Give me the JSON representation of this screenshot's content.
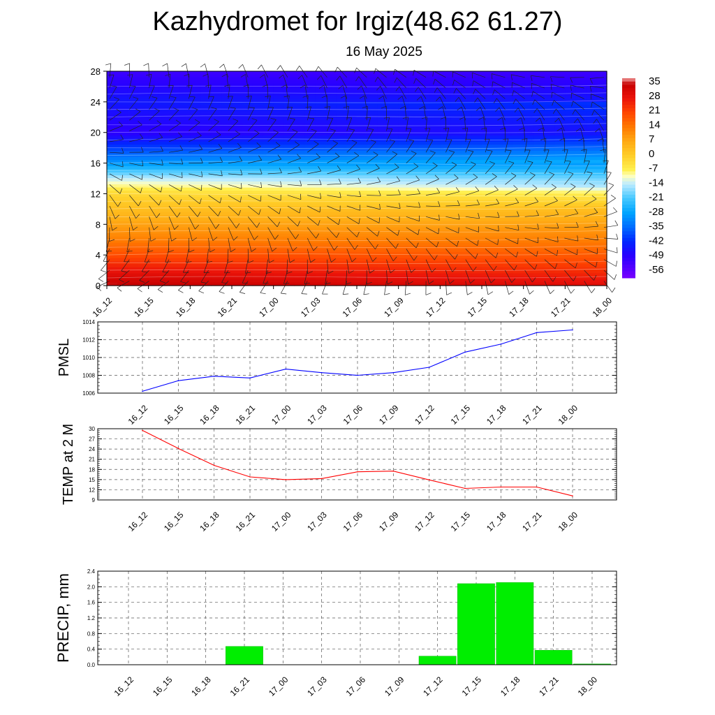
{
  "title": "Kazhydromet for Irgiz(48.62 61.27)",
  "subtitle": "16 May 2025",
  "time_labels": [
    "16_12",
    "16_15",
    "16_18",
    "16_21",
    "17_00",
    "17_03",
    "17_06",
    "17_09",
    "17_12",
    "17_15",
    "17_18",
    "17_21",
    "18_00"
  ],
  "colors": {
    "pmsl_line": "#0000ff",
    "temp_line": "#ff0000",
    "precip_bar": "#00ee00",
    "grid": "#555555"
  },
  "chart_data": [
    {
      "type": "heatmap",
      "description_of_field": "temperature cross-section with wind barbs",
      "y_ticks": [
        0,
        4,
        8,
        12,
        16,
        20,
        24,
        28
      ],
      "ylim": [
        0,
        28
      ],
      "x_ticks": [
        "16_12",
        "16_15",
        "16_18",
        "16_21",
        "17_00",
        "17_03",
        "17_06",
        "17_09",
        "17_12",
        "17_15",
        "17_18",
        "17_21",
        "18_00"
      ],
      "colorbar_labels": [
        "35",
        "28",
        "21",
        "14",
        "7",
        "0",
        "-7",
        "-14",
        "-21",
        "-28",
        "-35",
        "-42",
        "-49",
        "-56"
      ],
      "colorbar_range": [
        -60,
        38
      ],
      "level_temps_at_heights": {
        "heights": [
          0,
          4,
          8,
          12,
          14,
          16,
          20,
          24,
          28
        ],
        "temps": [
          30,
          18,
          8,
          -2,
          -14,
          -30,
          -50,
          -45,
          -52
        ]
      }
    },
    {
      "type": "line",
      "ylabel": "PMSL",
      "categories": [
        "16_12",
        "16_15",
        "16_18",
        "16_21",
        "17_00",
        "17_03",
        "17_06",
        "17_09",
        "17_12",
        "17_15",
        "17_18",
        "17_21",
        "18_00"
      ],
      "values": [
        1006.2,
        1007.4,
        1007.9,
        1007.7,
        1008.7,
        1008.3,
        1008.0,
        1008.3,
        1008.9,
        1010.6,
        1011.5,
        1012.8,
        1013.1
      ],
      "ylim": [
        1006,
        1014
      ],
      "y_ticks": [
        1006,
        1008,
        1010,
        1012,
        1014
      ]
    },
    {
      "type": "line",
      "ylabel": "TEMP at 2 M",
      "categories": [
        "16_12",
        "16_15",
        "16_18",
        "16_21",
        "17_00",
        "17_03",
        "17_06",
        "17_09",
        "17_12",
        "17_15",
        "17_18",
        "17_21",
        "18_00"
      ],
      "values": [
        29.5,
        24.2,
        19.2,
        15.8,
        15.0,
        15.3,
        17.3,
        17.5,
        14.9,
        12.4,
        12.8,
        12.8,
        10.2
      ],
      "ylim": [
        9,
        30
      ],
      "y_ticks": [
        9,
        12,
        15,
        18,
        21,
        24,
        27,
        30
      ]
    },
    {
      "type": "bar",
      "ylabel": "PRECIP, mm",
      "categories": [
        "16_12",
        "16_15",
        "16_18",
        "16_21",
        "17_00",
        "17_03",
        "17_06",
        "17_09",
        "17_12",
        "17_15",
        "17_18",
        "17_21",
        "18_00"
      ],
      "values": [
        0,
        0,
        0,
        0.47,
        0,
        0,
        0,
        0,
        0.22,
        2.08,
        2.11,
        0.37,
        0.02
      ],
      "ylim": [
        0,
        2.4
      ],
      "y_ticks": [
        "0.0",
        "0.4",
        "0.8",
        "1.2",
        "1.6",
        "2.0",
        "2.4"
      ]
    }
  ]
}
